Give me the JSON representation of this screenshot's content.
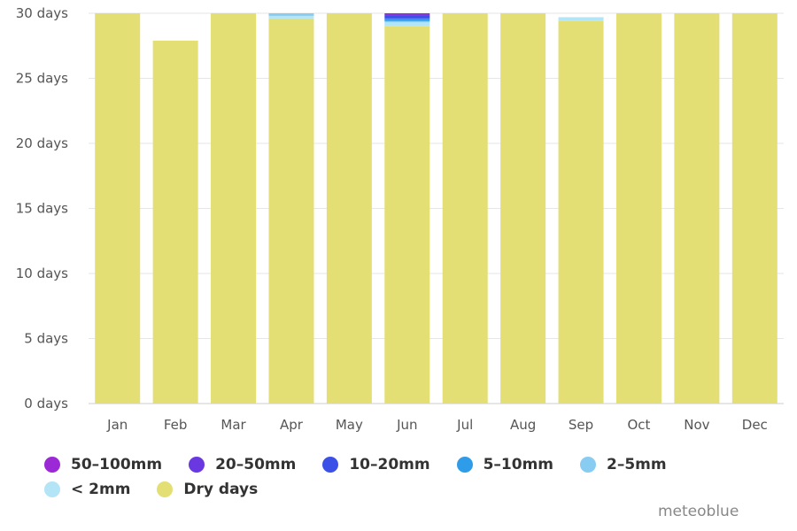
{
  "chart_data": {
    "type": "bar",
    "stacked": true,
    "categories": [
      "Jan",
      "Feb",
      "Mar",
      "Apr",
      "May",
      "Jun",
      "Jul",
      "Aug",
      "Sep",
      "Oct",
      "Nov",
      "Dec"
    ],
    "ylim": [
      0,
      30
    ],
    "yticks": [
      "0 days",
      "5 days",
      "10 days",
      "15 days",
      "20 days",
      "25 days",
      "30 days"
    ],
    "grid": true,
    "legend_position": "bottom",
    "series": [
      {
        "name": "Dry days",
        "color": "#e3df74",
        "values": [
          31,
          27.9,
          31,
          29.6,
          31,
          29.0,
          31,
          31,
          29.4,
          31,
          30,
          31
        ]
      },
      {
        "name": "< 2mm",
        "color": "#b3e5f7",
        "values": [
          0,
          0,
          0,
          0.2,
          0,
          0.3,
          0,
          0,
          0.3,
          0,
          0,
          0
        ]
      },
      {
        "name": "2-5mm",
        "color": "#89ccf2",
        "values": [
          0,
          0,
          0,
          0.2,
          0,
          0.1,
          0,
          0,
          0,
          0,
          0,
          0
        ]
      },
      {
        "name": "5-10mm",
        "color": "#2e9ce9",
        "values": [
          0,
          0,
          0,
          0,
          0,
          0.2,
          0,
          0,
          0,
          0,
          0,
          0
        ]
      },
      {
        "name": "10-20mm",
        "color": "#3b50e6",
        "values": [
          0,
          0,
          0,
          0,
          0,
          0.2,
          0,
          0,
          0,
          0,
          0,
          0
        ]
      },
      {
        "name": "20-50mm",
        "color": "#6a38e0",
        "values": [
          0,
          0,
          0,
          0,
          0,
          0.1,
          0,
          0,
          0,
          0,
          0,
          0
        ]
      },
      {
        "name": "50-100mm",
        "color": "#9b2ad6",
        "values": [
          0,
          0,
          0,
          0,
          0,
          0.1,
          0,
          0,
          0,
          0,
          0,
          0
        ]
      }
    ],
    "legend": [
      {
        "label": "50–100mm",
        "color": "#9b2ad6"
      },
      {
        "label": "20–50mm",
        "color": "#6a38e0"
      },
      {
        "label": "10–20mm",
        "color": "#3b50e6"
      },
      {
        "label": "5–10mm",
        "color": "#2e9ce9"
      },
      {
        "label": "2–5mm",
        "color": "#89ccf2"
      },
      {
        "label": "< 2mm",
        "color": "#b3e5f7"
      },
      {
        "label": "Dry days",
        "color": "#e3df74"
      }
    ]
  },
  "credit": "meteoblue"
}
